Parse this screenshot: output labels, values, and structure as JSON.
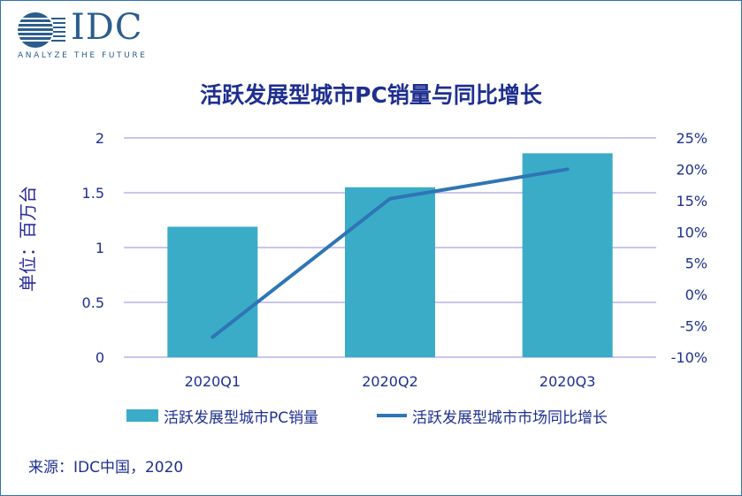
{
  "logo": {
    "text": "IDC",
    "tagline": "ANALYZE THE FUTURE"
  },
  "colors": {
    "bar": "#3aacc8",
    "line": "#2f75b5",
    "grid": "#b7b4ea",
    "text": "#1f2f8f",
    "border": "#2e74b5"
  },
  "source": "来源：IDC中国，2020",
  "chart_data": {
    "type": "bar",
    "title": "活跃发展型城市PC销量与同比增长",
    "ylabel": "单位：百万台",
    "xlabel": "",
    "categories": [
      "2020Q1",
      "2020Q2",
      "2020Q3"
    ],
    "series": [
      {
        "name": "活跃发展型城市PC销量",
        "type": "bar",
        "axis": "left",
        "values": [
          1.19,
          1.55,
          1.86
        ]
      },
      {
        "name": "活跃发展型城市市场同比增长",
        "type": "line",
        "axis": "right",
        "values": [
          -6.8,
          15.3,
          20.0
        ]
      }
    ],
    "ylim": [
      0,
      2
    ],
    "yticks": [
      "0",
      "0.5",
      "1",
      "1.5",
      "2"
    ],
    "y2lim": [
      -10,
      25
    ],
    "y2ticks": [
      "-10%",
      "-5%",
      "0%",
      "5%",
      "10%",
      "15%",
      "20%",
      "25%"
    ],
    "grid": true,
    "legend_position": "bottom"
  }
}
